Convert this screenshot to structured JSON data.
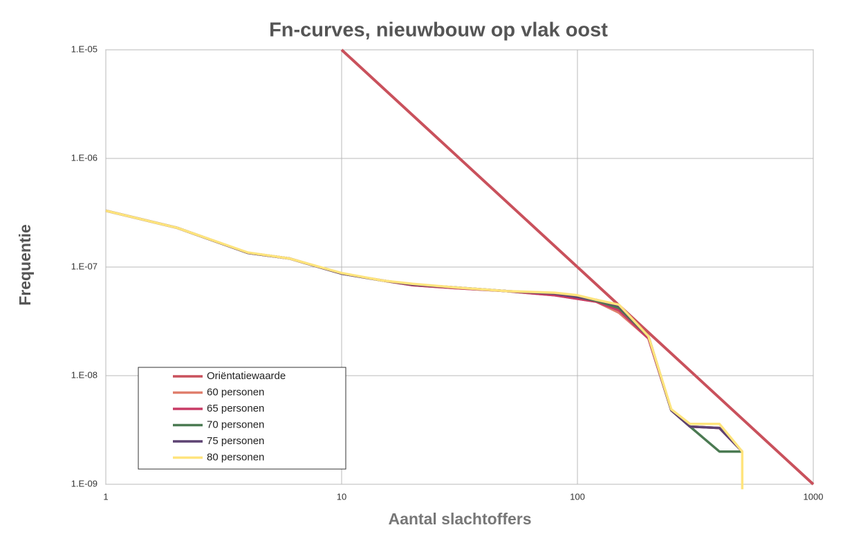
{
  "chart_data": {
    "type": "line",
    "title": "Fn-curves, nieuwbouw op vlak oost",
    "xlabel": "Aantal slachtoffers",
    "ylabel": "Frequentie",
    "xscale": "log",
    "yscale": "log",
    "grid": true,
    "legend": "lower left",
    "xlim": [
      1,
      1000
    ],
    "xticks": [
      1,
      10,
      100,
      1000
    ],
    "ylim": [
      1e-09,
      1e-05
    ],
    "yticks": [
      {
        "value": 1e-09,
        "label": "1.E-09"
      },
      {
        "value": 1e-08,
        "label": "1.E-08"
      },
      {
        "value": 1e-07,
        "label": "1.E-07"
      },
      {
        "value": 1e-06,
        "label": "1.E-06"
      },
      {
        "value": 1e-05,
        "label": "1.E-05"
      }
    ],
    "series": [
      {
        "name": "Oriëntatiewaarde",
        "color": "#c9515c",
        "x": [
          10,
          1000
        ],
        "values": [
          1e-05,
          1e-09
        ]
      },
      {
        "name": "60 personen",
        "color": "#e07f6d",
        "x": [
          1,
          2,
          4,
          6,
          10,
          15,
          20,
          30,
          50,
          80,
          100,
          120,
          150,
          200,
          250,
          300,
          400,
          500,
          500
        ],
        "values": [
          3.3e-07,
          2.3e-07,
          1.35e-07,
          1.2e-07,
          8.7e-08,
          7.5e-08,
          6.8e-08,
          6.4e-08,
          6e-08,
          5.5e-08,
          5.1e-08,
          4.8e-08,
          3.8e-08,
          2.2e-08,
          4.8e-09,
          3.4e-09,
          3.3e-09,
          2e-09,
          2e-09
        ]
      },
      {
        "name": "65 personen",
        "color": "#c83c66",
        "x": [
          1,
          2,
          4,
          6,
          10,
          15,
          20,
          30,
          50,
          80,
          100,
          120,
          150,
          200,
          250,
          300,
          400,
          500,
          500
        ],
        "values": [
          3.3e-07,
          2.3e-07,
          1.35e-07,
          1.2e-07,
          8.7e-08,
          7.5e-08,
          6.8e-08,
          6.4e-08,
          6e-08,
          5.5e-08,
          5.1e-08,
          4.8e-08,
          4e-08,
          2.2e-08,
          4.8e-09,
          3.4e-09,
          3.3e-09,
          2e-09,
          2e-09
        ]
      },
      {
        "name": "70 personen",
        "color": "#4b7a52",
        "x": [
          1,
          2,
          4,
          6,
          10,
          15,
          20,
          30,
          50,
          80,
          100,
          120,
          150,
          200,
          250,
          300,
          400,
          500,
          500
        ],
        "values": [
          3.3e-07,
          2.3e-07,
          1.35e-07,
          1.2e-07,
          8.7e-08,
          7.5e-08,
          6.9e-08,
          6.5e-08,
          6e-08,
          5.7e-08,
          5.3e-08,
          4.9e-08,
          4.2e-08,
          2.3e-08,
          4.8e-09,
          3.4e-09,
          2e-09,
          2e-09,
          2e-09
        ]
      },
      {
        "name": "75 personen",
        "color": "#5c4272",
        "x": [
          1,
          2,
          4,
          6,
          10,
          15,
          20,
          30,
          50,
          80,
          100,
          120,
          150,
          200,
          250,
          300,
          400,
          500,
          500
        ],
        "values": [
          3.3e-07,
          2.3e-07,
          1.35e-07,
          1.2e-07,
          8.7e-08,
          7.5e-08,
          6.9e-08,
          6.5e-08,
          6e-08,
          5.7e-08,
          5.3e-08,
          5e-08,
          4.4e-08,
          2.3e-08,
          4.8e-09,
          3.4e-09,
          3.3e-09,
          2e-09,
          2e-09
        ]
      },
      {
        "name": "80 personen",
        "color": "#ffe47d",
        "x": [
          1,
          2,
          4,
          6,
          10,
          15,
          20,
          30,
          50,
          80,
          100,
          120,
          150,
          200,
          250,
          300,
          400,
          500,
          500
        ],
        "values": [
          3.3e-07,
          2.3e-07,
          1.36e-07,
          1.2e-07,
          8.8e-08,
          7.5e-08,
          7e-08,
          6.5e-08,
          6e-08,
          5.8e-08,
          5.5e-08,
          5e-08,
          4.5e-08,
          2.3e-08,
          4.9e-09,
          3.6e-09,
          3.6e-09,
          2e-09,
          9e-10
        ]
      }
    ]
  }
}
